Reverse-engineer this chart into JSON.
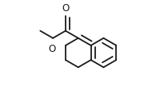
{
  "bg_color": "#ffffff",
  "bond_color": "#1a1a1a",
  "bond_lw": 1.3,
  "figsize": [
    2.0,
    1.15
  ],
  "dpi": 100,
  "label_fontsize": 8.5
}
